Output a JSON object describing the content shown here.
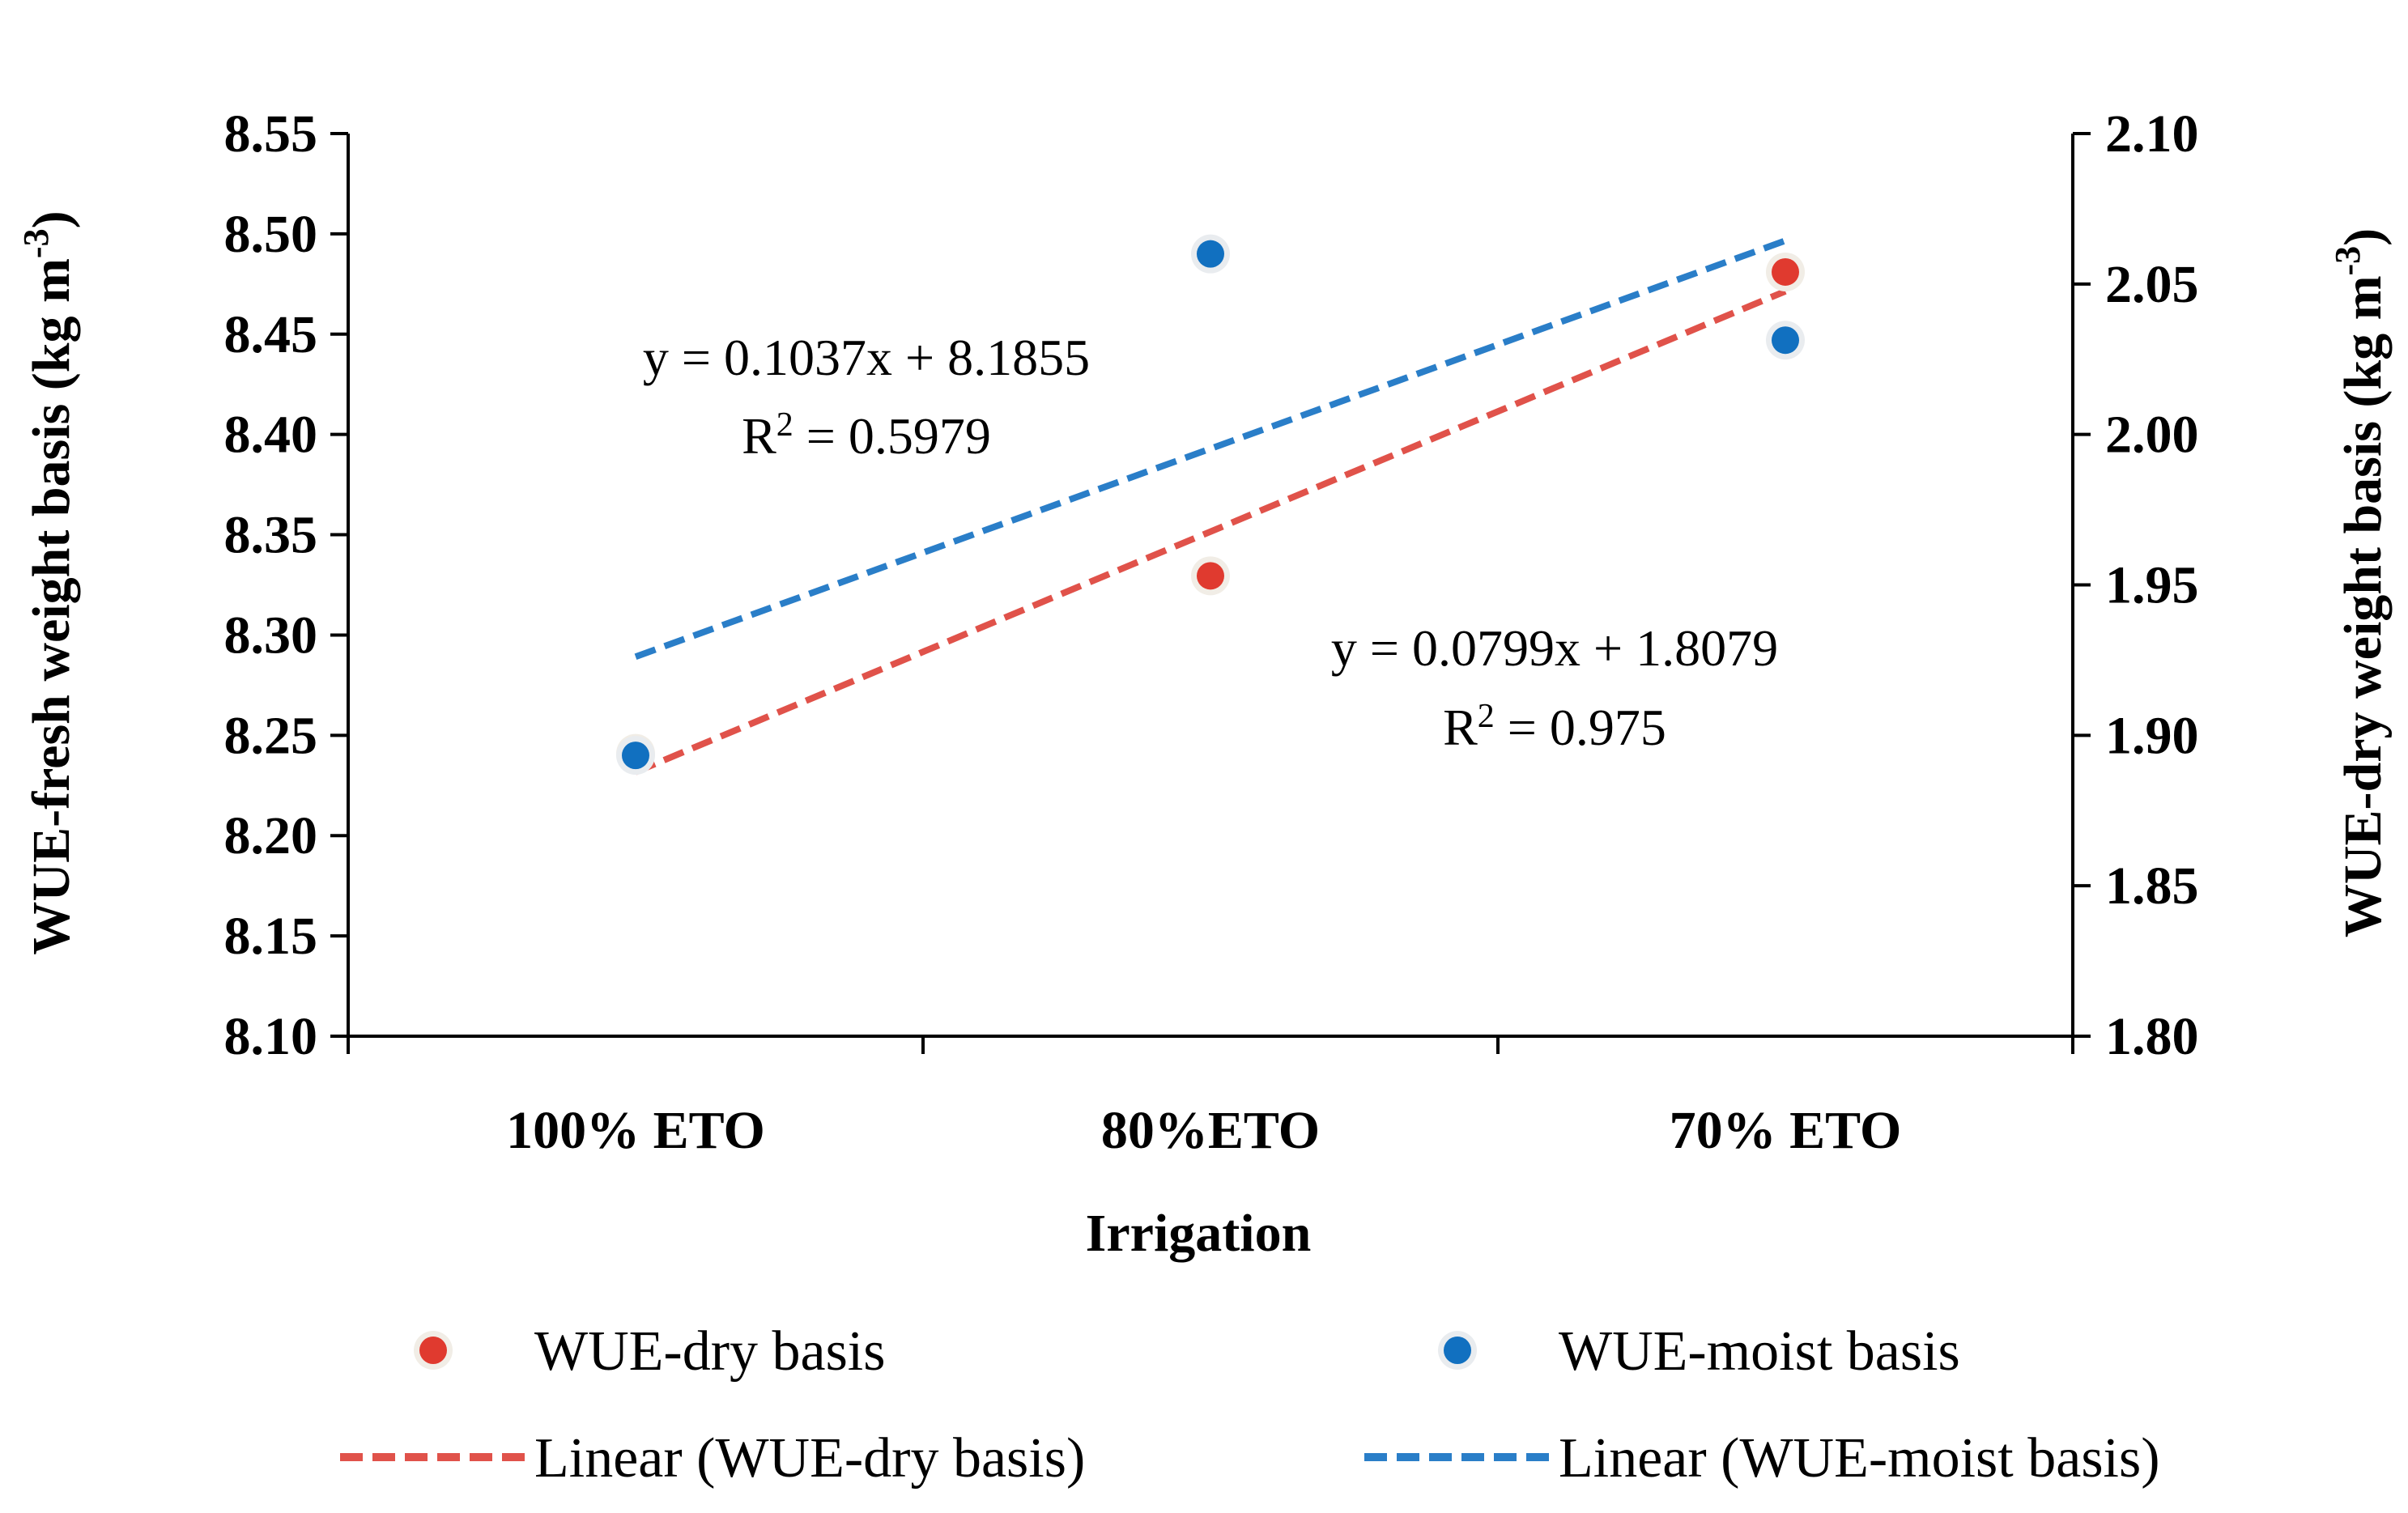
{
  "chart_data": {
    "type": "scatter",
    "categories": [
      "100% ETO",
      "80%ETO",
      "70% ETO"
    ],
    "xlabel": "Irrigation",
    "ylabel_left": "WUE-fresh weight basis (kg m",
    "ylabel_right": "WUE-dry weight basis (kg m",
    "ylabel_sup": "-3",
    "ylabel_close": ")",
    "y_left": {
      "range": [
        8.1,
        8.55
      ],
      "ticks": [
        "8.10",
        "8.15",
        "8.20",
        "8.25",
        "8.30",
        "8.35",
        "8.40",
        "8.45",
        "8.50",
        "8.55"
      ]
    },
    "y_right": {
      "range": [
        1.8,
        2.1
      ],
      "ticks": [
        "1.80",
        "1.85",
        "1.90",
        "1.95",
        "2.00",
        "2.05",
        "2.10"
      ]
    },
    "series": [
      {
        "name": "WUE-dry basis",
        "axis": "right",
        "color": "#e03a2f",
        "values": [
          1.894,
          1.953,
          2.054
        ],
        "trendline": {
          "name": "Linear (WUE-dry basis)",
          "color": "#e0524a",
          "slope": 0.0799,
          "intercept": 1.8079,
          "equation": "y = 0.0799x + 1.8079",
          "r2_label": "R",
          "r2_sup": "2",
          "r2_value": " = 0.975"
        }
      },
      {
        "name": "WUE-moist basis",
        "axis": "left",
        "color": "#1170c0",
        "values": [
          8.24,
          8.49,
          8.447
        ],
        "trendline": {
          "name": "Linear (WUE-moist basis)",
          "color": "#2a7ec8",
          "slope": 0.1037,
          "intercept": 8.1855,
          "equation": "y = 0.1037x + 8.1855",
          "r2_label": "R",
          "r2_sup": "2",
          "r2_value": " = 0.5979"
        }
      }
    ],
    "legend": [
      "WUE-dry basis",
      "WUE-moist basis",
      "Linear (WUE-dry basis)",
      "Linear (WUE-moist basis)"
    ]
  }
}
